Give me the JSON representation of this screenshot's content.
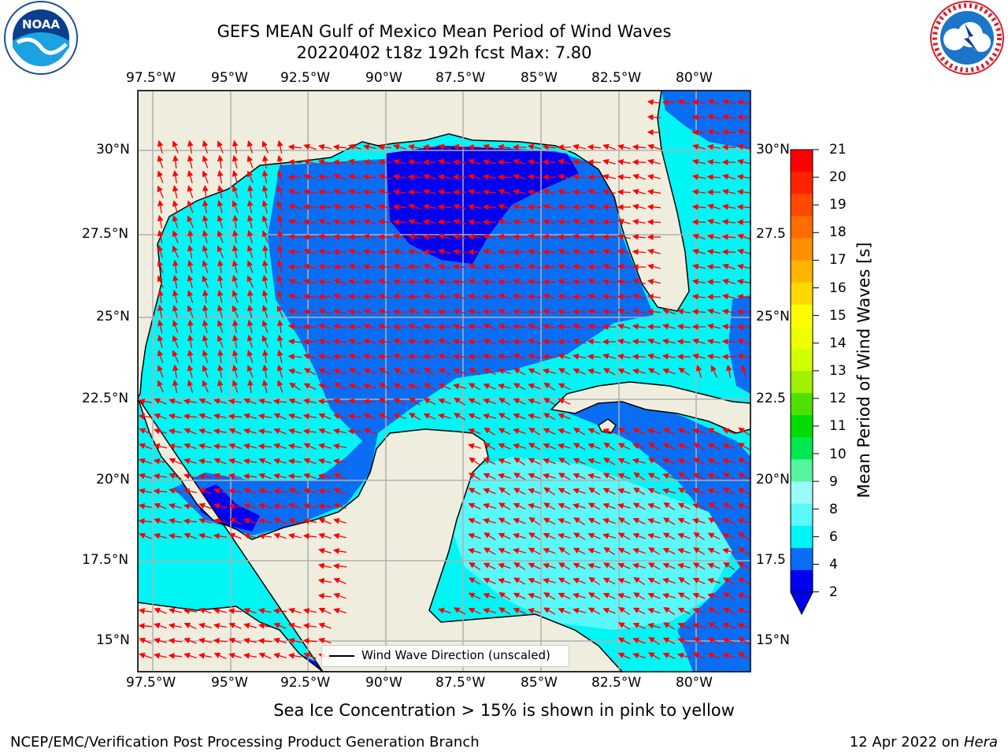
{
  "title": {
    "line1": "GEFS MEAN Gulf of Mexico Mean Period of Wind Waves",
    "line2": "20220402 t18z 192h fcst   Max: 7.80"
  },
  "logos": {
    "left": "noaa-logo",
    "right": "nws-logo",
    "left_ring_text": "NATIONAL OCEANIC AND ATMOSPHERIC ADMINISTRATION · U.S. DEPARTMENT OF COMMERCE",
    "left_center_text": "NOAA",
    "right_ring_text": "NATIONAL WEATHER SERVICE"
  },
  "map": {
    "lon_labels": [
      "97.5°W",
      "95°W",
      "92.5°W",
      "90°W",
      "87.5°W",
      "85°W",
      "82.5°W",
      "80°W"
    ],
    "lat_labels_left": [
      "30°N",
      "27.5°N",
      "25°N",
      "22.5°N",
      "20°N",
      "17.5°N",
      "15°N"
    ],
    "lat_labels_right": [
      "30°N",
      "27.5",
      "25°N",
      "22.5",
      "20°N",
      "17.5",
      "15°N"
    ],
    "colors": {
      "land": "#efedde",
      "deep_blue": "#0000f0",
      "mid_blue": "#0a6ef5",
      "cyan": "#00f5f5",
      "light_cyan": "#5af8f8",
      "pale_cyan": "#9cfafa",
      "arrow": "#ff0000",
      "grid": "#b0b0b0"
    }
  },
  "legend": {
    "entry": "Wind Wave Direction (unscaled)"
  },
  "colorbar": {
    "label": "Mean Period of Wind Waves [s]",
    "ticks": [
      "21",
      "20",
      "19",
      "18",
      "17",
      "16",
      "15",
      "14",
      "13",
      "12",
      "11",
      "10",
      "9",
      "8",
      "6",
      "4",
      "2"
    ],
    "colors_top_to_bottom": [
      "#ff0000",
      "#ff2400",
      "#ff4800",
      "#ff6c00",
      "#ff9000",
      "#ffb400",
      "#ffd800",
      "#fffc00",
      "#f0ff00",
      "#d2ff00",
      "#a0f000",
      "#50e000",
      "#00dc00",
      "#00e850",
      "#55f59f",
      "#9cfafa",
      "#5af8f8",
      "#00f5f5",
      "#0a6ef5",
      "#0000f0"
    ]
  },
  "note": "Sea Ice Concentration > 15% is shown in pink to yellow",
  "footer": {
    "left": "NCEP/EMC/Verification Post Processing Product Generation Branch",
    "date": "12 Apr 2022 on ",
    "machine": "Hera"
  }
}
